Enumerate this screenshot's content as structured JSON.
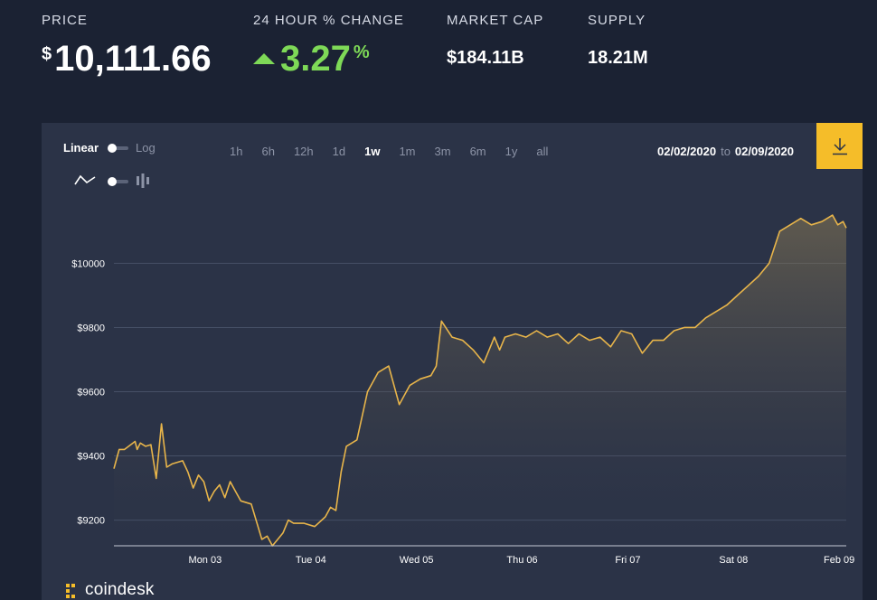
{
  "stats": {
    "price_label": "PRICE",
    "price_currency": "$",
    "price_value": "10,111.66",
    "change_label": "24 HOUR % CHANGE",
    "change_value": "3.27",
    "change_unit": "%",
    "market_cap_label": "MARKET CAP",
    "market_cap_value": "$184.11B",
    "supply_label": "SUPPLY",
    "supply_value": "18.21M",
    "up_color": "#7ed957"
  },
  "controls": {
    "linear_label": "Linear",
    "log_label": "Log",
    "scale_selected": "Linear",
    "chart_mode_selected": "line",
    "ranges": [
      "1h",
      "6h",
      "12h",
      "1d",
      "1w",
      "1m",
      "3m",
      "6m",
      "1y",
      "all"
    ],
    "active_range": "1w",
    "date_from": "02/02/2020",
    "date_to_word": "to",
    "date_to": "02/09/2020",
    "download_icon": "download-icon",
    "download_color": "#f5bd29"
  },
  "brand": {
    "name": "coindesk"
  },
  "chart_data": {
    "type": "area",
    "x_tick_labels": [
      "Mon 03",
      "Tue 04",
      "Wed 05",
      "Thu 06",
      "Fri 07",
      "Sat 08",
      "Feb 09"
    ],
    "y_tick_labels": [
      "$9200",
      "$9400",
      "$9600",
      "$9800",
      "$10000"
    ],
    "y_ticks": [
      9200,
      9400,
      9600,
      9800,
      10000
    ],
    "ylim": [
      9120,
      10170
    ],
    "xlim": [
      0,
      6.93
    ],
    "grid": true,
    "line_color": "#e8b54a",
    "x": [
      0,
      0.05,
      0.1,
      0.2,
      0.22,
      0.25,
      0.3,
      0.35,
      0.4,
      0.45,
      0.5,
      0.55,
      0.65,
      0.7,
      0.75,
      0.8,
      0.85,
      0.9,
      0.95,
      1.0,
      1.05,
      1.1,
      1.15,
      1.2,
      1.3,
      1.4,
      1.45,
      1.5,
      1.55,
      1.6,
      1.65,
      1.7,
      1.8,
      1.9,
      2.0,
      2.05,
      2.1,
      2.15,
      2.2,
      2.3,
      2.4,
      2.5,
      2.6,
      2.7,
      2.8,
      2.9,
      3.0,
      3.05,
      3.1,
      3.2,
      3.3,
      3.4,
      3.5,
      3.6,
      3.65,
      3.7,
      3.8,
      3.9,
      4.0,
      4.1,
      4.2,
      4.3,
      4.4,
      4.5,
      4.6,
      4.7,
      4.8,
      4.9,
      5.0,
      5.1,
      5.2,
      5.3,
      5.4,
      5.5,
      5.6,
      5.7,
      5.8,
      5.9,
      6.0,
      6.1,
      6.2,
      6.3,
      6.4,
      6.5,
      6.6,
      6.7,
      6.8,
      6.85,
      6.9,
      6.93
    ],
    "values": [
      9360,
      9420,
      9420,
      9445,
      9420,
      9440,
      9430,
      9435,
      9330,
      9500,
      9365,
      9375,
      9385,
      9350,
      9300,
      9340,
      9320,
      9260,
      9290,
      9310,
      9270,
      9320,
      9290,
      9260,
      9250,
      9140,
      9150,
      9120,
      9140,
      9160,
      9200,
      9190,
      9190,
      9180,
      9210,
      9240,
      9230,
      9350,
      9430,
      9450,
      9600,
      9660,
      9680,
      9560,
      9620,
      9640,
      9650,
      9680,
      9820,
      9770,
      9760,
      9730,
      9690,
      9770,
      9730,
      9770,
      9780,
      9770,
      9790,
      9770,
      9780,
      9750,
      9780,
      9760,
      9770,
      9740,
      9790,
      9780,
      9720,
      9760,
      9760,
      9790,
      9800,
      9800,
      9830,
      9850,
      9870,
      9900,
      9930,
      9960,
      10000,
      10100,
      10120,
      10140,
      10120,
      10130,
      10150,
      10120,
      10130,
      10110
    ]
  }
}
